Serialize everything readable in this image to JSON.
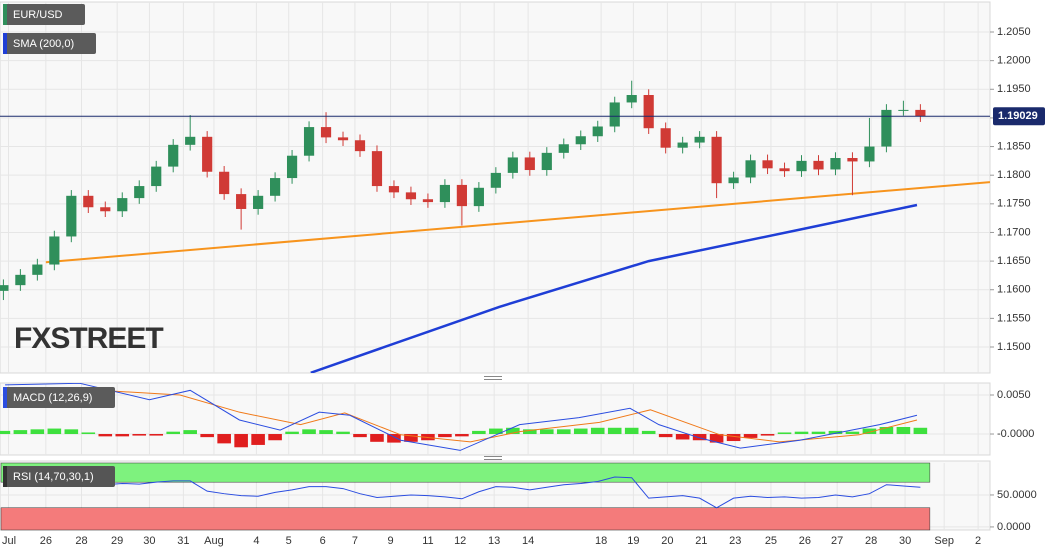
{
  "chart_data": [
    {
      "type": "candlestick",
      "series": [
        {
          "name": "EUR/USD",
          "open": [
            1.1598,
            1.1608,
            1.1626,
            1.1644,
            1.1693,
            1.1764,
            1.1744,
            1.1737,
            1.176,
            1.1781,
            1.1815,
            1.1853,
            1.1867,
            1.1806,
            1.1767,
            1.1741,
            1.1764,
            1.1795,
            1.1834,
            1.1884,
            1.1866,
            1.1861,
            1.1842,
            1.1781,
            1.177,
            1.1758,
            1.1753,
            1.1783,
            1.1746,
            1.1778,
            1.1804,
            1.1831,
            1.1809,
            1.1839,
            1.1854,
            1.1868,
            1.1885,
            1.1927,
            1.194,
            1.1882,
            1.1848,
            1.1857,
            1.1867,
            1.1786,
            1.1796,
            1.1826,
            1.1812,
            1.1807,
            1.1825,
            1.181,
            1.183,
            1.1824,
            1.185,
            1.1914,
            1.1914
          ],
          "high": [
            1.1618,
            1.1636,
            1.1654,
            1.1703,
            1.1774,
            1.1774,
            1.1754,
            1.177,
            1.1791,
            1.1825,
            1.1863,
            1.1905,
            1.1877,
            1.1816,
            1.1777,
            1.1774,
            1.1805,
            1.1844,
            1.1894,
            1.191,
            1.1876,
            1.1871,
            1.1852,
            1.1791,
            1.178,
            1.1768,
            1.1793,
            1.1793,
            1.1788,
            1.1814,
            1.1841,
            1.1841,
            1.1849,
            1.1864,
            1.1878,
            1.1895,
            1.1937,
            1.1965,
            1.195,
            1.1892,
            1.1867,
            1.1877,
            1.1877,
            1.1806,
            1.1836,
            1.1836,
            1.1822,
            1.1835,
            1.1835,
            1.184,
            1.184,
            1.19,
            1.1924,
            1.193,
            1.1924
          ],
          "low": [
            1.1582,
            1.1598,
            1.1616,
            1.1634,
            1.1683,
            1.1734,
            1.1727,
            1.1727,
            1.175,
            1.1771,
            1.1805,
            1.1843,
            1.1796,
            1.1757,
            1.1705,
            1.1731,
            1.1754,
            1.1785,
            1.1824,
            1.1856,
            1.1851,
            1.1832,
            1.1771,
            1.176,
            1.1748,
            1.1743,
            1.1743,
            1.1712,
            1.1736,
            1.1768,
            1.1794,
            1.1799,
            1.1799,
            1.1829,
            1.1844,
            1.1858,
            1.1875,
            1.1917,
            1.1872,
            1.1838,
            1.1838,
            1.1847,
            1.176,
            1.1776,
            1.1786,
            1.1802,
            1.1797,
            1.1797,
            1.18,
            1.18,
            1.1765,
            1.1814,
            1.184,
            1.1904,
            1.1893
          ],
          "close": [
            1.1608,
            1.1626,
            1.1644,
            1.1693,
            1.1764,
            1.1744,
            1.1737,
            1.176,
            1.1781,
            1.1815,
            1.1853,
            1.1867,
            1.1806,
            1.1767,
            1.1741,
            1.1764,
            1.1795,
            1.1834,
            1.1884,
            1.1866,
            1.1861,
            1.1842,
            1.1781,
            1.177,
            1.1758,
            1.1753,
            1.1783,
            1.1746,
            1.1778,
            1.1804,
            1.1831,
            1.1809,
            1.1839,
            1.1854,
            1.1868,
            1.1885,
            1.1927,
            1.194,
            1.1882,
            1.1848,
            1.1857,
            1.1867,
            1.1786,
            1.1796,
            1.1826,
            1.1812,
            1.1807,
            1.1825,
            1.181,
            1.183,
            1.1824,
            1.185,
            1.1914,
            1.1914,
            1.1903
          ]
        },
        {
          "name": "SMA (200,0)",
          "color": "#1f3ed6",
          "x": [
            18.1,
            29.2,
            38.0,
            46.9,
            53.8
          ],
          "values": [
            1.1455,
            1.157,
            1.165,
            1.1705,
            1.1748
          ]
        }
      ],
      "trendline": {
        "color": "#f7941d",
        "x": [
          2.5,
          58.1
        ],
        "values": [
          1.1648,
          1.1788
        ]
      },
      "last_price": {
        "value": 1.19029,
        "label": "1.19029"
      },
      "watermark": "FXSTREET",
      "up_color": "#2f8f5b",
      "down_color": "#d03a35",
      "xlim": [
        -0.2,
        58.1
      ],
      "ylim": [
        1.14546,
        1.21024
      ],
      "yticks": [
        {
          "value": 1.205,
          "label": "1.2050"
        },
        {
          "value": 1.2,
          "label": "1.2000"
        },
        {
          "value": 1.195,
          "label": "1.1950"
        },
        {
          "value": 1.19,
          "label": "1.1900"
        },
        {
          "value": 1.185,
          "label": "1.1850"
        },
        {
          "value": 1.18,
          "label": "1.1800"
        },
        {
          "value": 1.175,
          "label": "1.1750"
        },
        {
          "value": 1.17,
          "label": "1.1700"
        },
        {
          "value": 1.165,
          "label": "1.1650"
        },
        {
          "value": 1.16,
          "label": "1.1600"
        },
        {
          "value": 1.155,
          "label": "1.1550"
        },
        {
          "value": 1.15,
          "label": "1.1500"
        }
      ],
      "grid": true
    },
    {
      "type": "macd",
      "title": "MACD (12,26,9)",
      "macd": {
        "color": "#2b4de0",
        "x": [
          0.1,
          4.5,
          8.6,
          11.0,
          13.9,
          16.3,
          18.6,
          20.4,
          23.4,
          26.9,
          30.4,
          33.9,
          36.9,
          38.6,
          41.0,
          43.4,
          46.9,
          51.6,
          53.8
        ],
        "values": [
          0.0063,
          0.0065,
          0.0044,
          0.0056,
          0.0018,
          0.0005,
          0.0028,
          0.0024,
          -0.0008,
          -0.0021,
          0.0012,
          0.0021,
          0.0033,
          0.0012,
          -0.0005,
          -0.0018,
          -0.0008,
          0.0012,
          0.0024
        ]
      },
      "signal": {
        "color": "#f07a1a",
        "x": [
          0.1,
          5.7,
          10.4,
          13.9,
          17.5,
          20.1,
          23.4,
          27.5,
          30.4,
          35.1,
          38.1,
          42.2,
          45.7,
          50.4,
          53.8
        ],
        "values": [
          0.0056,
          0.0056,
          0.005,
          0.0028,
          0.0012,
          0.0027,
          -0.0001,
          -0.001,
          0.0003,
          0.0015,
          0.0031,
          -0.0001,
          -0.001,
          -0.0001,
          0.0018
        ]
      },
      "histogram": {
        "up_color": "#3ee03e",
        "down_color": "#e01e1e",
        "values": [
          0.0004,
          0.0005,
          0.0006,
          0.0007,
          0.0006,
          0.0002,
          -0.0003,
          -0.0003,
          -0.0002,
          -0.0002,
          0.0003,
          0.0005,
          -0.0004,
          -0.0012,
          -0.0017,
          -0.0014,
          -0.0008,
          0.0003,
          0.0006,
          0.0005,
          0.0003,
          -0.0004,
          -0.001,
          -0.0011,
          -0.001,
          -0.0008,
          -0.0004,
          -0.0003,
          0.0004,
          0.0007,
          0.0008,
          0.0006,
          0.0006,
          0.0006,
          0.0007,
          0.0008,
          0.0008,
          0.0008,
          0.0004,
          -0.0004,
          -0.0007,
          -0.0008,
          -0.0011,
          -0.0009,
          -0.0005,
          -0.0002,
          0.0002,
          0.0003,
          0.0003,
          0.0004,
          0.0003,
          0.0007,
          0.0009,
          0.0009,
          0.0008
        ]
      },
      "xlim": [
        -0.2,
        58.1
      ],
      "ylim": [
        -0.00269,
        0.00654
      ],
      "yticks": [
        {
          "value": 0.005,
          "label": "0.0050"
        },
        {
          "value": 0,
          "label": "-0.0000"
        }
      ]
    },
    {
      "type": "rsi",
      "title": "RSI (14,70,30,1)",
      "color": "#2b4de0",
      "values": [
        66,
        68,
        66,
        70,
        68,
        67,
        66,
        68,
        67,
        70,
        72,
        72,
        56,
        52,
        49,
        48,
        54,
        58,
        63,
        63,
        60,
        52,
        46,
        48,
        50,
        49,
        47,
        44,
        55,
        63,
        62,
        58,
        62,
        66,
        68,
        71,
        78,
        77,
        45,
        47,
        49,
        45,
        30,
        45,
        48,
        46,
        47,
        45,
        46,
        50,
        47,
        52,
        66,
        64,
        62
      ],
      "bands": [
        {
          "from": 70,
          "to": 100,
          "color": "#7ef27e"
        },
        {
          "from": -4.8,
          "to": 30,
          "color": "#f47b7b"
        }
      ],
      "xlim": [
        -0.2,
        58.1
      ],
      "ylim": [
        -4.8,
        100
      ],
      "yticks": [
        {
          "value": 50,
          "label": "50.0000"
        },
        {
          "value": 0,
          "label": "0.0000"
        }
      ],
      "xticks": [
        {
          "value": 0.3,
          "label": "Jul"
        },
        {
          "value": 2.5,
          "label": "26"
        },
        {
          "value": 4.6,
          "label": "28"
        },
        {
          "value": 6.7,
          "label": "29"
        },
        {
          "value": 8.6,
          "label": "30"
        },
        {
          "value": 10.6,
          "label": "31"
        },
        {
          "value": 12.4,
          "label": "Aug"
        },
        {
          "value": 14.9,
          "label": "4"
        },
        {
          "value": 16.8,
          "label": "5"
        },
        {
          "value": 18.8,
          "label": "6"
        },
        {
          "value": 20.7,
          "label": "7"
        },
        {
          "value": 22.8,
          "label": "9"
        },
        {
          "value": 25.0,
          "label": "11"
        },
        {
          "value": 26.9,
          "label": "12"
        },
        {
          "value": 28.9,
          "label": "13"
        },
        {
          "value": 30.9,
          "label": "14"
        },
        {
          "value": 35.2,
          "label": "18"
        },
        {
          "value": 37.1,
          "label": "19"
        },
        {
          "value": 39.1,
          "label": "20"
        },
        {
          "value": 41.1,
          "label": "21"
        },
        {
          "value": 43.1,
          "label": "23"
        },
        {
          "value": 45.2,
          "label": "25"
        },
        {
          "value": 47.2,
          "label": "26"
        },
        {
          "value": 49.1,
          "label": "27"
        },
        {
          "value": 51.1,
          "label": "28"
        },
        {
          "value": 53.1,
          "label": "30"
        },
        {
          "value": 55.4,
          "label": "Sep"
        },
        {
          "value": 57.4,
          "label": "2"
        }
      ]
    }
  ]
}
